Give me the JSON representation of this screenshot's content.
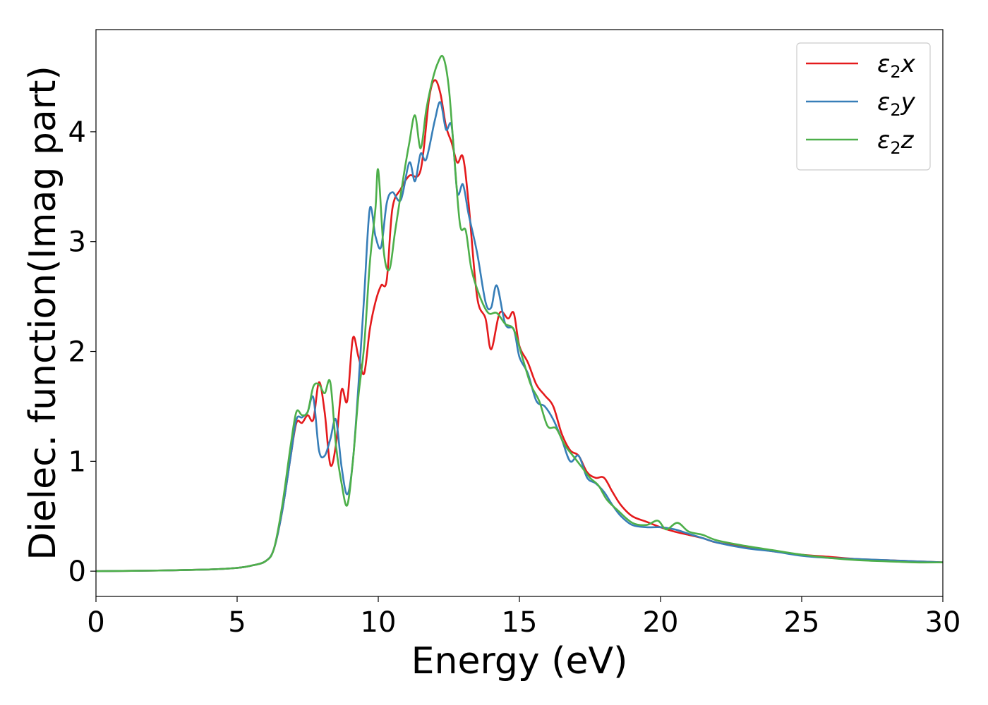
{
  "chart_data": {
    "type": "line",
    "title": "",
    "xlabel": "Energy (eV)",
    "ylabel": "Dielec. function(Imag part)",
    "xlim": [
      0,
      30
    ],
    "ylim": [
      -0.23,
      4.93
    ],
    "xticks": [
      0,
      5,
      10,
      15,
      20,
      25,
      30
    ],
    "yticks": [
      0,
      1,
      2,
      3,
      4
    ],
    "grid": false,
    "legend_position": "top-right",
    "series": [
      {
        "name": "ε2x",
        "label_base": "ε",
        "label_sub": "2",
        "label_var": "x",
        "color": "#e41a1c",
        "x": [
          0,
          2,
          4,
          5,
          5.5,
          6,
          6.3,
          6.6,
          6.9,
          7.1,
          7.3,
          7.5,
          7.7,
          7.9,
          8.1,
          8.3,
          8.5,
          8.7,
          8.9,
          9.1,
          9.3,
          9.5,
          9.7,
          9.9,
          10.1,
          10.3,
          10.5,
          10.8,
          11.1,
          11.5,
          11.8,
          12.0,
          12.2,
          12.4,
          12.6,
          12.8,
          13.0,
          13.2,
          13.5,
          13.8,
          14.0,
          14.3,
          14.6,
          14.8,
          15.0,
          15.3,
          15.6,
          15.9,
          16.2,
          16.5,
          16.8,
          17.1,
          17.4,
          17.7,
          18.0,
          18.3,
          18.6,
          19.0,
          19.5,
          20.0,
          20.5,
          21.0,
          21.5,
          22.0,
          23.0,
          24.0,
          25.0,
          26.0,
          27.0,
          28.0,
          29.0,
          30.0
        ],
        "y": [
          0.0,
          0.005,
          0.015,
          0.03,
          0.05,
          0.09,
          0.2,
          0.55,
          1.05,
          1.35,
          1.35,
          1.42,
          1.38,
          1.72,
          1.45,
          0.97,
          1.15,
          1.65,
          1.55,
          2.12,
          1.95,
          1.8,
          2.2,
          2.45,
          2.6,
          2.65,
          3.3,
          3.48,
          3.6,
          3.65,
          4.3,
          4.47,
          4.35,
          4.05,
          3.9,
          3.72,
          3.77,
          3.35,
          2.5,
          2.3,
          2.02,
          2.35,
          2.3,
          2.35,
          2.05,
          1.9,
          1.7,
          1.6,
          1.5,
          1.25,
          1.1,
          1.05,
          0.9,
          0.85,
          0.85,
          0.72,
          0.6,
          0.5,
          0.45,
          0.4,
          0.36,
          0.33,
          0.3,
          0.26,
          0.22,
          0.18,
          0.15,
          0.13,
          0.11,
          0.1,
          0.09,
          0.08
        ]
      },
      {
        "name": "ε2y",
        "label_base": "ε",
        "label_sub": "2",
        "label_var": "y",
        "color": "#377eb8",
        "x": [
          0,
          2,
          4,
          5,
          5.5,
          6,
          6.3,
          6.6,
          6.9,
          7.1,
          7.3,
          7.5,
          7.7,
          7.9,
          8.1,
          8.3,
          8.5,
          8.7,
          8.9,
          9.1,
          9.3,
          9.5,
          9.7,
          9.9,
          10.1,
          10.3,
          10.5,
          10.8,
          11.1,
          11.3,
          11.5,
          11.7,
          12.0,
          12.2,
          12.4,
          12.6,
          12.8,
          13.0,
          13.2,
          13.5,
          13.8,
          14.0,
          14.2,
          14.5,
          14.8,
          15.0,
          15.3,
          15.6,
          15.9,
          16.2,
          16.5,
          16.8,
          17.1,
          17.4,
          17.7,
          18.0,
          18.3,
          18.6,
          19.0,
          19.5,
          20.0,
          20.5,
          21.0,
          21.5,
          22.0,
          23.0,
          24.0,
          25.0,
          26.0,
          27.0,
          28.0,
          29.0,
          30.0
        ],
        "y": [
          0.0,
          0.005,
          0.015,
          0.03,
          0.05,
          0.09,
          0.2,
          0.55,
          1.05,
          1.38,
          1.4,
          1.45,
          1.58,
          1.1,
          1.05,
          1.2,
          1.38,
          0.95,
          0.7,
          1.0,
          1.7,
          2.5,
          3.3,
          3.05,
          2.95,
          3.35,
          3.45,
          3.38,
          3.72,
          3.55,
          3.8,
          3.75,
          4.1,
          4.27,
          4.02,
          4.05,
          3.45,
          3.52,
          3.25,
          2.9,
          2.45,
          2.4,
          2.6,
          2.25,
          2.2,
          1.95,
          1.8,
          1.55,
          1.5,
          1.38,
          1.2,
          1.0,
          1.05,
          0.85,
          0.8,
          0.72,
          0.6,
          0.5,
          0.42,
          0.4,
          0.4,
          0.38,
          0.34,
          0.3,
          0.26,
          0.21,
          0.18,
          0.14,
          0.12,
          0.11,
          0.1,
          0.09,
          0.08
        ]
      },
      {
        "name": "ε2z",
        "label_base": "ε",
        "label_sub": "2",
        "label_var": "z",
        "color": "#4daf4a",
        "x": [
          0,
          2,
          4,
          5,
          5.5,
          6,
          6.3,
          6.6,
          6.9,
          7.1,
          7.3,
          7.5,
          7.7,
          7.9,
          8.1,
          8.3,
          8.5,
          8.7,
          8.9,
          9.1,
          9.3,
          9.5,
          9.7,
          9.9,
          10.0,
          10.2,
          10.4,
          10.6,
          10.9,
          11.1,
          11.3,
          11.5,
          11.7,
          11.9,
          12.1,
          12.3,
          12.5,
          12.7,
          12.9,
          13.1,
          13.3,
          13.6,
          13.9,
          14.2,
          14.5,
          14.8,
          15.1,
          15.4,
          15.7,
          16.0,
          16.3,
          16.6,
          16.9,
          17.2,
          17.5,
          17.8,
          18.1,
          18.5,
          19.0,
          19.5,
          19.9,
          20.2,
          20.6,
          21.0,
          21.5,
          22.0,
          23.0,
          24.0,
          25.0,
          26.0,
          27.0,
          28.0,
          29.0,
          30.0
        ],
        "y": [
          0.0,
          0.005,
          0.015,
          0.03,
          0.05,
          0.09,
          0.2,
          0.6,
          1.15,
          1.45,
          1.42,
          1.45,
          1.68,
          1.7,
          1.62,
          1.72,
          1.15,
          0.8,
          0.6,
          1.0,
          1.6,
          2.05,
          2.8,
          3.3,
          3.65,
          2.9,
          2.75,
          3.1,
          3.6,
          3.9,
          4.15,
          3.85,
          4.2,
          4.45,
          4.62,
          4.68,
          4.4,
          3.75,
          3.15,
          3.1,
          2.75,
          2.5,
          2.35,
          2.35,
          2.25,
          2.2,
          1.95,
          1.7,
          1.55,
          1.32,
          1.3,
          1.15,
          1.05,
          0.95,
          0.85,
          0.78,
          0.65,
          0.55,
          0.44,
          0.42,
          0.46,
          0.38,
          0.44,
          0.36,
          0.33,
          0.28,
          0.23,
          0.19,
          0.15,
          0.12,
          0.1,
          0.09,
          0.08,
          0.08
        ]
      }
    ]
  }
}
